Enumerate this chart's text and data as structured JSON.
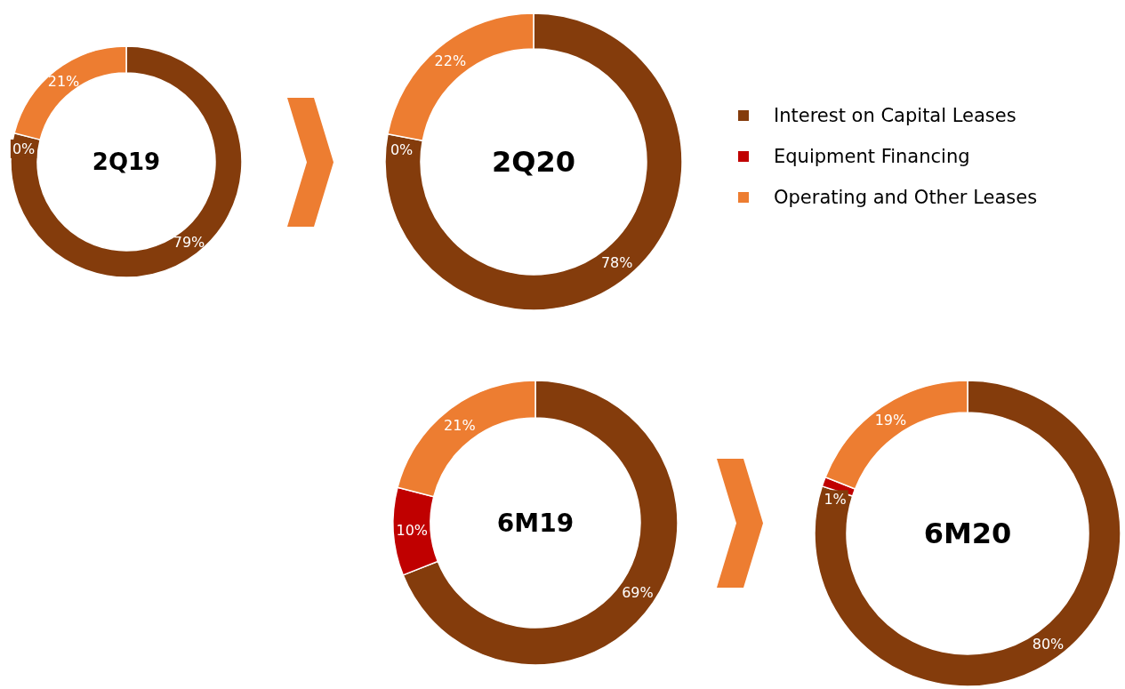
{
  "chart_data": [
    {
      "type": "donut",
      "title": "2Q19",
      "categories": [
        null,
        null,
        null
      ],
      "values": [
        79,
        0,
        21
      ],
      "value_labels": [
        "79%",
        "0%",
        "21%"
      ],
      "colors": [
        "#843c0c",
        "#c00000",
        "#ed7d31"
      ],
      "legend": false
    },
    {
      "type": "donut",
      "title": "2Q20",
      "categories": [
        "Interest on Capital Leases",
        "Equipment Financing",
        "Operating and Other Leases"
      ],
      "values": [
        78,
        0,
        22
      ],
      "value_labels": [
        "78%",
        "0%",
        "22%"
      ],
      "colors": [
        "#843c0c",
        "#c00000",
        "#ed7d31"
      ],
      "legend": "right"
    },
    {
      "type": "donut",
      "title": "6M19",
      "categories": [
        null,
        null,
        null
      ],
      "values": [
        69,
        10,
        21
      ],
      "value_labels": [
        "69%",
        "10%",
        "21%"
      ],
      "colors": [
        "#843c0c",
        "#c00000",
        "#ed7d31"
      ],
      "legend": false
    },
    {
      "type": "donut",
      "title": "6M20",
      "categories": [
        null,
        null,
        null
      ],
      "values": [
        80,
        1,
        19
      ],
      "value_labels": [
        "80%",
        "1%",
        "19%"
      ],
      "colors": [
        "#843c0c",
        "#c00000",
        "#ed7d31"
      ],
      "legend": false
    }
  ]
}
